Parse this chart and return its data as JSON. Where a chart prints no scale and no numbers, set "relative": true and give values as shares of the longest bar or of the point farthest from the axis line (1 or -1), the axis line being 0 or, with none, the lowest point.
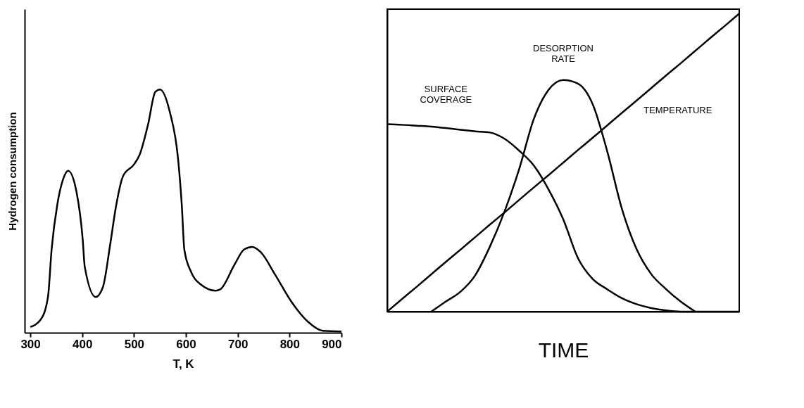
{
  "chart_data": [
    {
      "type": "line",
      "xlabel": "T, K",
      "ylabel": "Hydrogen consumption",
      "relative": true,
      "tick_labels": "x",
      "grid": false,
      "legend": false,
      "marker": "none",
      "line_style": "solid",
      "xlim": [
        289,
        900
      ],
      "xticks": [
        300,
        400,
        500,
        600,
        700,
        800,
        900
      ],
      "series": [
        {
          "color": "#000000",
          "x": [
            300,
            320,
            334,
            341,
            352,
            363,
            373,
            389,
            401,
            405,
            426,
            440,
            454,
            465,
            479,
            500,
            511,
            527,
            541,
            550,
            569,
            585,
            592,
            597,
            610,
            629,
            657,
            666,
            694,
            712,
            728,
            744,
            772,
            804,
            836,
            864,
            900
          ],
          "values": [
            0.024,
            0.054,
            0.147,
            0.342,
            0.527,
            0.63,
            0.666,
            0.579,
            0.383,
            0.27,
            0.147,
            0.188,
            0.363,
            0.517,
            0.645,
            0.692,
            0.733,
            0.856,
            0.99,
            1.0,
            0.907,
            0.712,
            0.527,
            0.342,
            0.25,
            0.198,
            0.173,
            0.178,
            0.281,
            0.342,
            0.353,
            0.332,
            0.239,
            0.126,
            0.044,
            0.008,
            0.005
          ]
        }
      ]
    },
    {
      "type": "line",
      "xlabel": "TIME",
      "relative": true,
      "tick_labels": false,
      "grid": false,
      "legend": false,
      "marker": "none",
      "line_style": "solid",
      "categories": [
        null,
        null,
        null,
        null,
        null,
        null,
        null,
        null,
        null,
        null,
        null,
        null,
        null,
        null,
        null,
        null,
        null,
        null,
        null,
        null,
        null,
        null,
        null,
        null,
        null
      ],
      "series": [
        {
          "name": "SURFACE COVERAGE",
          "color": "#000000",
          "values": [
            0.629,
            0.627,
            0.624,
            0.621,
            0.616,
            0.61,
            0.605,
            0.601,
            0.58,
            0.54,
            0.49,
            0.41,
            0.31,
            0.18,
            0.11,
            0.075,
            0.045,
            0.025,
            0.012,
            0.004,
            0,
            0,
            0,
            0,
            0
          ]
        },
        {
          "name": "DESORPTION RATE",
          "color": "#000000",
          "values": [
            null,
            null,
            null,
            0,
            0.034,
            0.067,
            0.122,
            0.218,
            0.336,
            0.479,
            0.647,
            0.744,
            0.777,
            0.765,
            0.697,
            0.538,
            0.345,
            0.21,
            0.126,
            0.076,
            0.034,
            0,
            null,
            null,
            null
          ]
        },
        {
          "name": "TEMPERATURE",
          "color": "#000000",
          "values": [
            0,
            0.042,
            0.083,
            0.125,
            0.167,
            0.208,
            0.25,
            0.292,
            0.333,
            0.375,
            0.417,
            0.458,
            0.5,
            0.542,
            0.583,
            0.625,
            0.667,
            0.708,
            0.75,
            0.792,
            0.833,
            0.875,
            0.917,
            0.958,
            1.0
          ]
        }
      ]
    }
  ]
}
